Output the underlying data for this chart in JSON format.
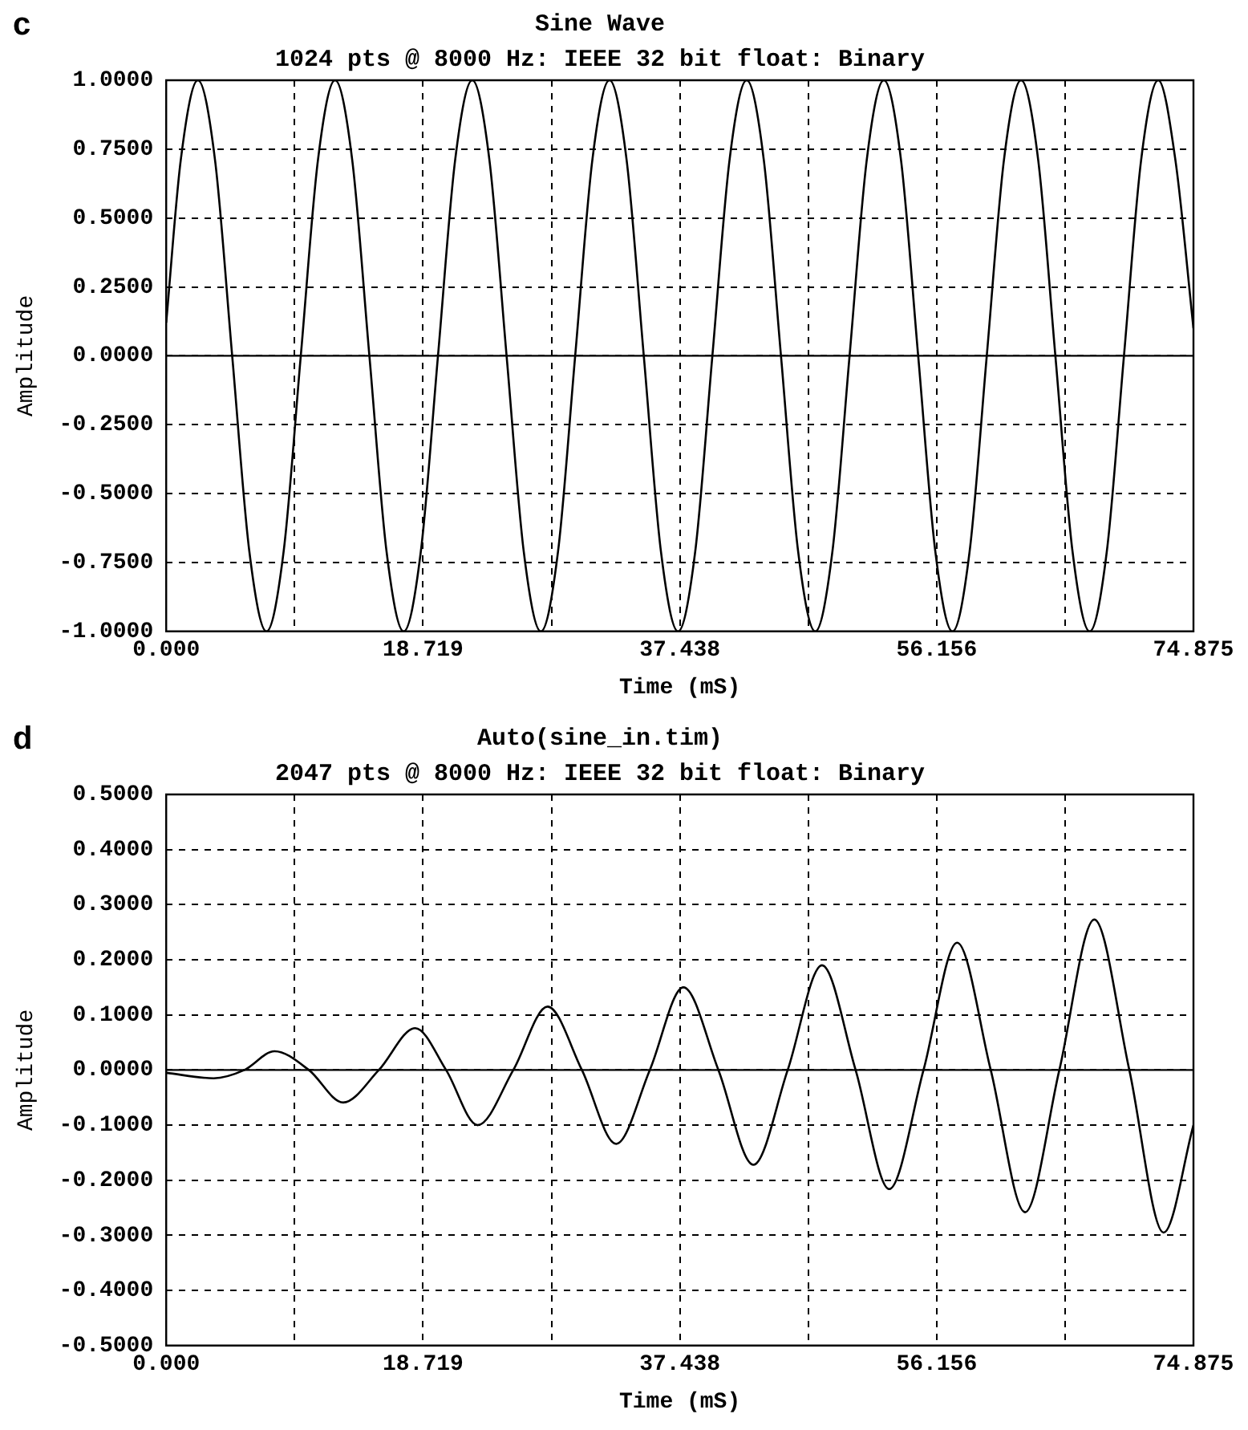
{
  "chart_data": [
    {
      "type": "line",
      "title": "Sine Wave",
      "subtitle": "1024 pts @ 8000 Hz: IEEE 32 bit float: Binary",
      "xlabel": "Time (mS)",
      "ylabel": "Amplitude",
      "annotations": [
        "c"
      ],
      "grid": true,
      "color": "#000000",
      "xlim": [
        0,
        74.875
      ],
      "xticks": [
        {
          "value": 0,
          "label": "0.000"
        },
        {
          "value": 9.359,
          "label": null
        },
        {
          "value": 18.719,
          "label": "18.719"
        },
        {
          "value": 28.078,
          "label": null
        },
        {
          "value": 37.438,
          "label": "37.438"
        },
        {
          "value": 46.797,
          "label": null
        },
        {
          "value": 56.156,
          "label": "56.156"
        },
        {
          "value": 65.516,
          "label": null
        },
        {
          "value": 74.875,
          "label": "74.875"
        }
      ],
      "ylim": [
        -1,
        1
      ],
      "yticks": [
        {
          "value": -1,
          "label": "-1.0000"
        },
        {
          "value": -0.75,
          "label": "-0.7500"
        },
        {
          "value": -0.5,
          "label": "-0.5000"
        },
        {
          "value": -0.25,
          "label": "-0.2500"
        },
        {
          "value": 0,
          "label": "0.0000"
        },
        {
          "value": 0.25,
          "label": "0.2500"
        },
        {
          "value": 0.5,
          "label": "0.5000"
        },
        {
          "value": 0.75,
          "label": "0.7500"
        },
        {
          "value": 1,
          "label": "1.0000"
        }
      ],
      "ref_lines": [
        {
          "axis": "y",
          "value": 0
        }
      ],
      "x": [
        0,
        1.06,
        2.31,
        3.56,
        4.81,
        6.06,
        7.31,
        8.56,
        9.81,
        11.06,
        12.31,
        13.56,
        14.81,
        16.06,
        17.31,
        18.56,
        19.81,
        21.06,
        22.31,
        23.56,
        24.81,
        26.06,
        27.31,
        28.56,
        29.81,
        31.06,
        32.31,
        33.56,
        34.81,
        36.06,
        37.31,
        38.56,
        39.81,
        41.06,
        42.31,
        43.56,
        44.81,
        46.06,
        47.31,
        48.56,
        49.81,
        51.06,
        52.31,
        53.56,
        54.81,
        56.06,
        57.31,
        58.56,
        59.81,
        61.06,
        62.31,
        63.56,
        64.81,
        66.06,
        67.31,
        68.56,
        69.81,
        71.06,
        72.31,
        73.56,
        74.875
      ],
      "values": [
        0.12,
        0.71,
        1,
        0.71,
        0,
        -0.71,
        -1,
        -0.71,
        0,
        0.71,
        1,
        0.71,
        0,
        -0.71,
        -1,
        -0.71,
        0,
        0.71,
        1,
        0.71,
        0,
        -0.71,
        -1,
        -0.71,
        0,
        0.71,
        1,
        0.71,
        0,
        -0.71,
        -1,
        -0.71,
        0,
        0.71,
        1,
        0.71,
        0,
        -0.71,
        -1,
        -0.71,
        0,
        0.71,
        1,
        0.71,
        0,
        -0.71,
        -1,
        -0.71,
        0,
        0.71,
        1,
        0.71,
        0,
        -0.71,
        -1,
        -0.71,
        0,
        0.71,
        1,
        0.71,
        0.1
      ]
    },
    {
      "type": "line",
      "title": "Auto(sine_in.tim)",
      "subtitle": "2047 pts @ 8000 Hz: IEEE 32 bit float: Binary",
      "xlabel": "Time (mS)",
      "ylabel": "Amplitude",
      "annotations": [
        "d"
      ],
      "grid": true,
      "color": "#000000",
      "xlim": [
        0,
        74.875
      ],
      "xticks": [
        {
          "value": 0,
          "label": "0.000"
        },
        {
          "value": 9.359,
          "label": null
        },
        {
          "value": 18.719,
          "label": "18.719"
        },
        {
          "value": 28.078,
          "label": null
        },
        {
          "value": 37.438,
          "label": "37.438"
        },
        {
          "value": 46.797,
          "label": null
        },
        {
          "value": 56.156,
          "label": "56.156"
        },
        {
          "value": 65.516,
          "label": null
        },
        {
          "value": 74.875,
          "label": "74.875"
        }
      ],
      "ylim": [
        -0.5,
        0.5
      ],
      "yticks": [
        {
          "value": -0.5,
          "label": "-0.5000"
        },
        {
          "value": -0.4,
          "label": "-0.4000"
        },
        {
          "value": -0.3,
          "label": "-0.3000"
        },
        {
          "value": -0.2,
          "label": "-0.2000"
        },
        {
          "value": -0.1,
          "label": "-0.1000"
        },
        {
          "value": 0,
          "label": "0.0000"
        },
        {
          "value": 0.1,
          "label": "0.1000"
        },
        {
          "value": 0.2,
          "label": "0.2000"
        },
        {
          "value": 0.3,
          "label": "0.3000"
        },
        {
          "value": 0.4,
          "label": "0.4000"
        },
        {
          "value": 0.5,
          "label": "0.5000"
        }
      ],
      "ref_lines": [
        {
          "axis": "y",
          "value": 0
        }
      ],
      "x": [
        0,
        3.46,
        5.7,
        7.9,
        10.4,
        12.9,
        15.5,
        18.15,
        20.4,
        22.7,
        25.3,
        27.8,
        30.3,
        32.8,
        35.25,
        37.7,
        40.25,
        42.8,
        45.3,
        47.8,
        50.25,
        52.7,
        55.2,
        57.65,
        60.1,
        62.6,
        65.1,
        67.65,
        70.2,
        72.7,
        74.875
      ],
      "values": [
        -0.005,
        -0.015,
        0,
        0.034,
        0,
        -0.059,
        0,
        0.076,
        0,
        -0.1,
        0,
        0.115,
        0,
        -0.134,
        0,
        0.15,
        0,
        -0.172,
        0,
        0.19,
        0,
        -0.216,
        0,
        0.231,
        0,
        -0.258,
        0,
        0.273,
        0,
        -0.295,
        -0.1
      ]
    }
  ]
}
